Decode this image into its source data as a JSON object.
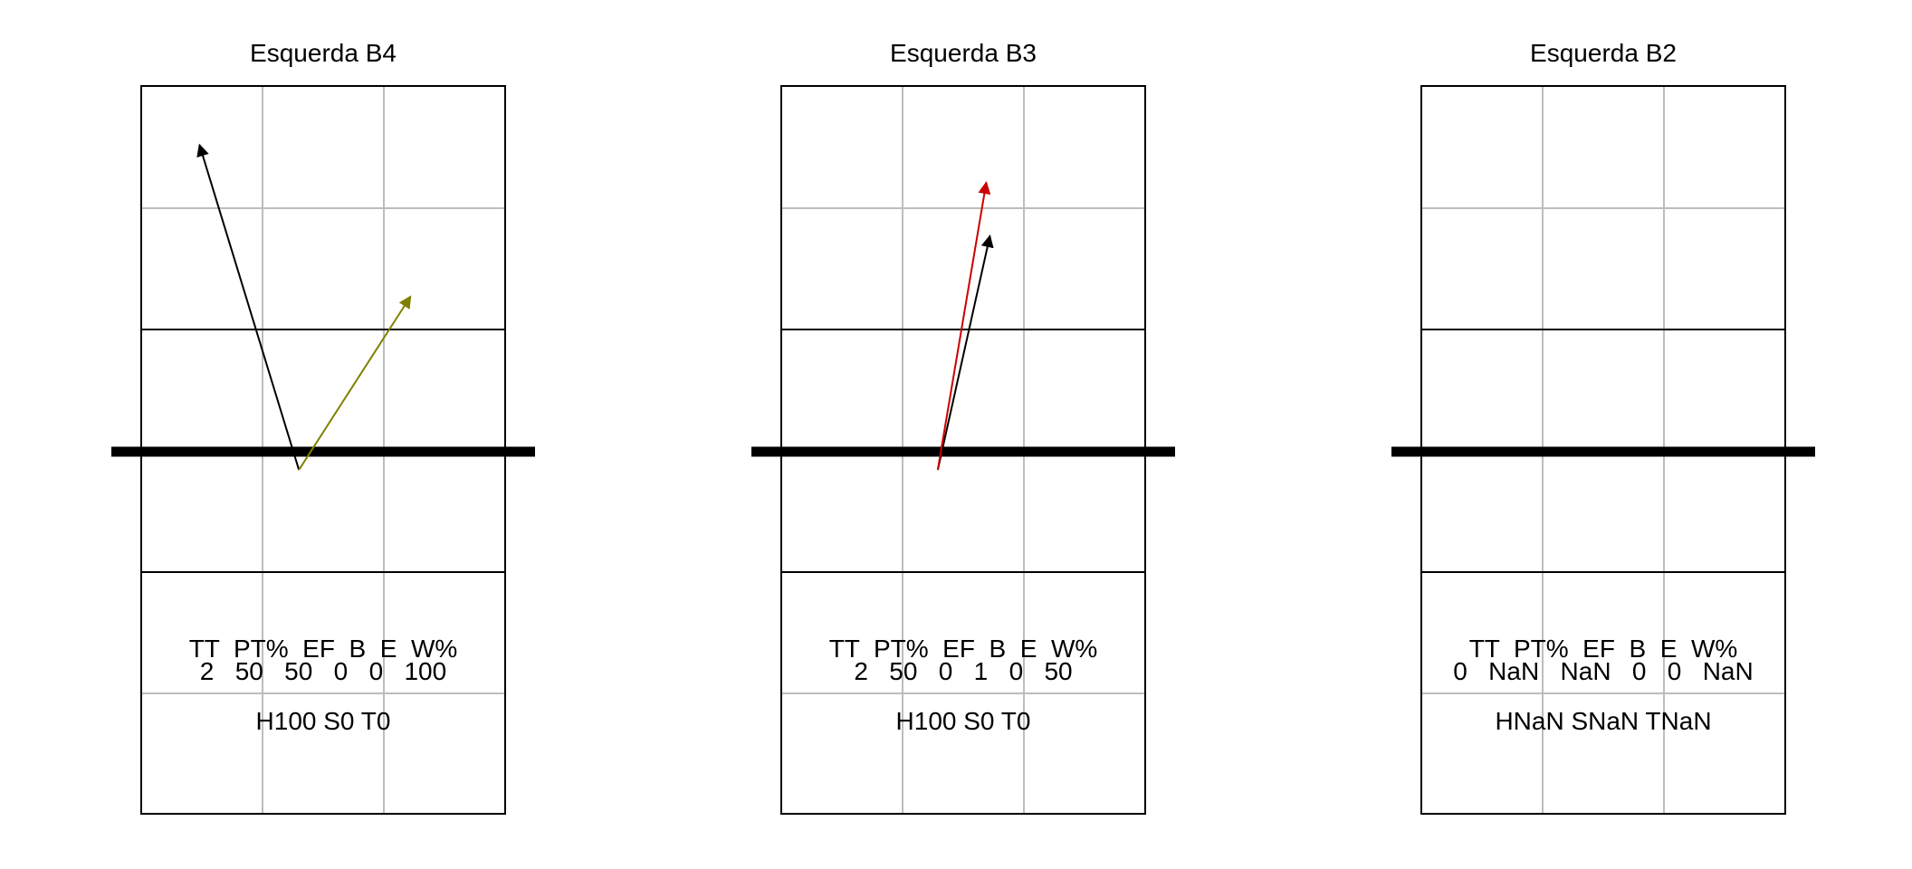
{
  "chart_data": [
    {
      "type": "other",
      "title": "Esquerda B4",
      "stats": {
        "header": "TT  PT%  EF  B  E  W%",
        "values": "2   50   50   0   0   100",
        "summary": "H100 S0 T0"
      },
      "arrows": [
        {
          "color": "#000000",
          "from": [
            1.3,
            -0.15
          ],
          "to": [
            0.48,
            2.53
          ]
        },
        {
          "color": "#808000",
          "from": [
            1.3,
            -0.15
          ],
          "to": [
            2.22,
            1.28
          ]
        }
      ]
    },
    {
      "type": "other",
      "title": "Esquerda B3",
      "stats": {
        "header": "TT  PT%  EF  B  E  W%",
        "values": "2   50   0   1   0   50",
        "summary": "H100 S0 T0"
      },
      "arrows": [
        {
          "color": "#000000",
          "from": [
            1.29,
            -0.15
          ],
          "to": [
            1.72,
            1.78
          ]
        },
        {
          "color": "#cc0000",
          "from": [
            1.29,
            -0.15
          ],
          "to": [
            1.69,
            2.22
          ]
        }
      ]
    },
    {
      "type": "other",
      "title": "Esquerda B2",
      "stats": {
        "header": "TT  PT%  EF  B  E  W%",
        "values": "0   NaN   NaN   0   0   NaN",
        "summary": "HNaN SNaN TNaN"
      },
      "arrows": []
    }
  ]
}
